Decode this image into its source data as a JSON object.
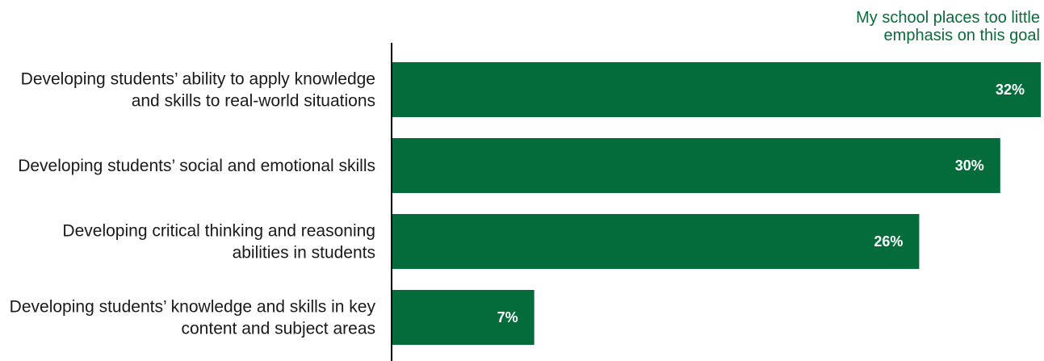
{
  "chart_data": {
    "type": "bar",
    "orientation": "horizontal",
    "legend": {
      "lines": [
        "My school places too little",
        "emphasis on this goal"
      ],
      "placement": "top-right"
    },
    "categories": [
      [
        "Developing students’ ability to apply knowledge",
        "and skills to real-world situations"
      ],
      [
        "Developing students’ social and emotional skills"
      ],
      [
        "Developing critical thinking and reasoning",
        "abilities in students"
      ],
      [
        "Developing students’ knowledge and skills in key",
        "content and subject areas"
      ]
    ],
    "series": [
      {
        "name": "My school places too little emphasis on this goal",
        "values": [
          32,
          30,
          26,
          7
        ],
        "value_labels": [
          "32%",
          "30%",
          "26%",
          "7%"
        ]
      }
    ],
    "xlim": [
      0,
      32
    ],
    "grid": false,
    "bar_color": "#036c3a",
    "legend_color": "#0b6b3a",
    "axis_color": "#000000",
    "label_color": "#1a1a1a"
  }
}
